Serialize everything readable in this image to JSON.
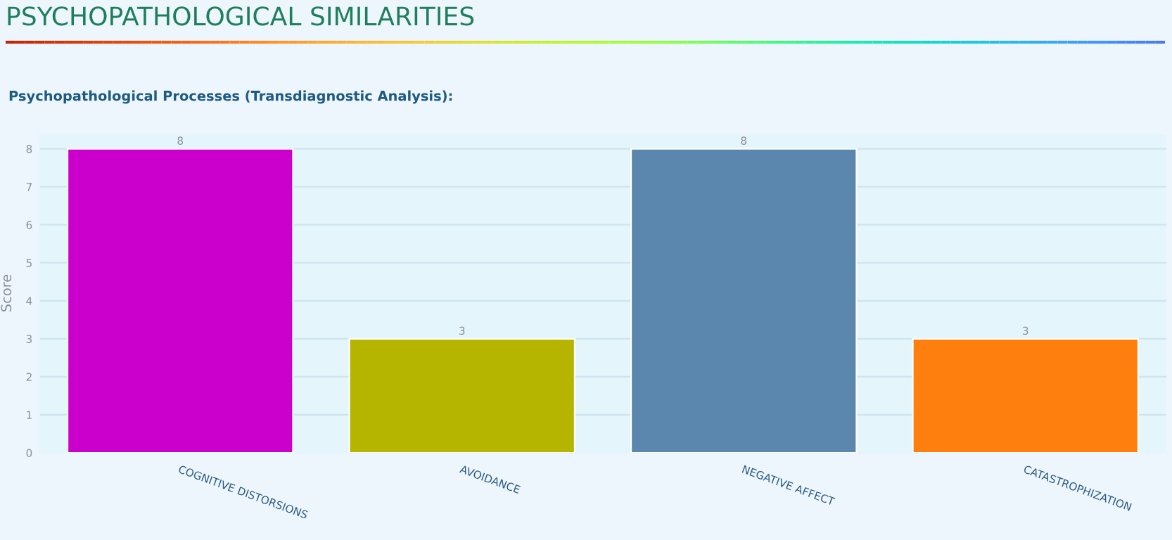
{
  "chart_data": {
    "type": "bar",
    "title": "PSYCHOPATHOLOGICAL SIMILARITIES",
    "subtitle": "Psychopathological Processes (Transdiagnostic Analysis):",
    "ylabel": "Score",
    "categories": [
      "COGNITIVE DISTORSIONS",
      "AVOIDANCE",
      "NEGATIVE AFFECT",
      "CATASTROPHIZATION"
    ],
    "values": [
      8,
      3,
      8,
      3
    ],
    "colors": [
      "#cc00cc",
      "#b5b500",
      "#5b86ad",
      "#ff7f0e"
    ],
    "ylim": [
      0,
      8.4
    ],
    "yticks": [
      0,
      1,
      2,
      3,
      4,
      5,
      6,
      7,
      8
    ],
    "grid": "y",
    "data_labels": true
  }
}
